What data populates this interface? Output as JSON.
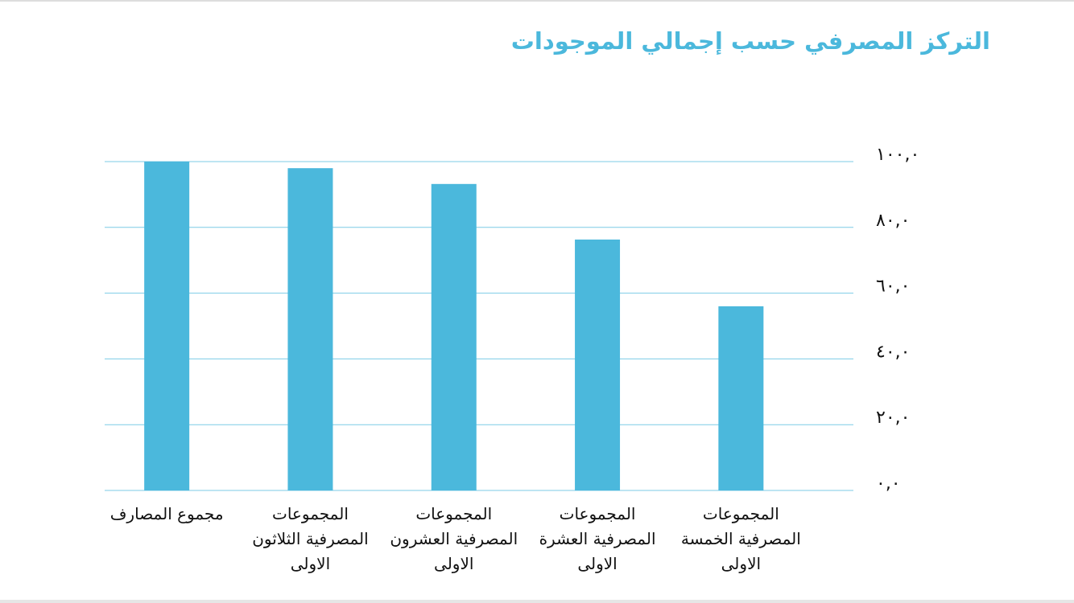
{
  "chart_data": {
    "type": "bar",
    "title": "التركز المصرفي حسب إجمالي الموجودات",
    "categories": [
      "مجموع المصارف",
      "المجموعات المصرفية الثلاثون الاولى",
      "المجموعات المصرفية العشرون الاولى",
      "المجموعات المصرفية العشرة الاولى",
      "المجموعات المصرفية الخمسة الاولى"
    ],
    "values": [
      100,
      98,
      93.2,
      76.3,
      56
    ],
    "color": "#4bb8dc",
    "ylim": [
      0,
      100
    ],
    "yticks": [
      {
        "value": 0,
        "label": "٠,٠"
      },
      {
        "value": 20,
        "label": "٢٠,٠"
      },
      {
        "value": 40,
        "label": "٤٠,٠"
      },
      {
        "value": 60,
        "label": "٦٠,٠"
      },
      {
        "value": 80,
        "label": "٨٠,٠"
      },
      {
        "value": 100,
        "label": "١٠٠,٠"
      }
    ],
    "grid": true
  }
}
